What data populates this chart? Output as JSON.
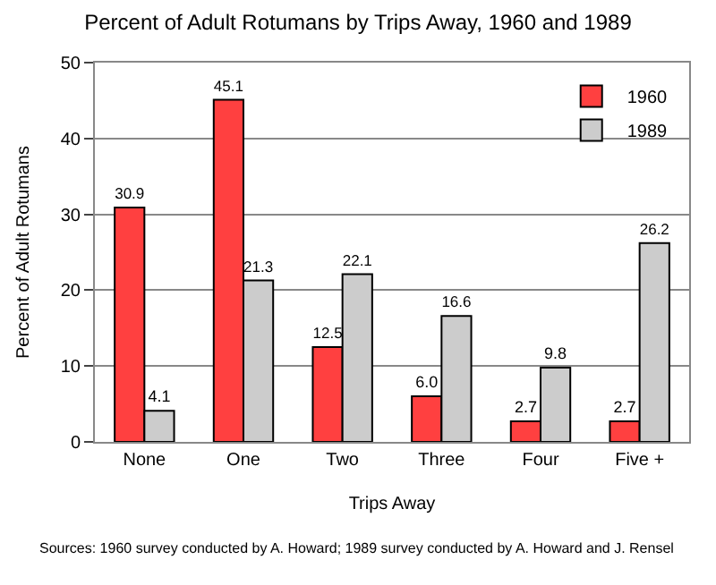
{
  "chart_data": {
    "type": "bar",
    "title": "Percent of Adult Rotumans by Trips Away, 1960 and 1989",
    "xlabel": "Trips Away",
    "ylabel": "Percent of Adult Rotumans",
    "categories": [
      "None",
      "One",
      "Two",
      "Three",
      "Four",
      "Five +"
    ],
    "series": [
      {
        "name": "1960",
        "color": "#ff4040",
        "values": [
          30.9,
          45.1,
          12.5,
          6.0,
          2.7,
          2.7
        ],
        "value_labels": [
          "30.9",
          "45.1",
          "12.5",
          "6.0",
          "2.7",
          "2.7"
        ]
      },
      {
        "name": "1989",
        "color": "#cccccc",
        "values": [
          4.1,
          21.3,
          22.1,
          16.6,
          9.8,
          26.2
        ],
        "value_labels": [
          "4.1",
          "21.3",
          "22.1",
          "16.6",
          "9.8",
          "26.2"
        ]
      }
    ],
    "ylim": [
      0,
      50
    ],
    "yticks": [
      0,
      10,
      20,
      30,
      40,
      50
    ],
    "grid": "y",
    "legend": "top right",
    "annotations": [
      "Sources: 1960 survey conducted by A. Howard; 1989 survey conducted by A. Howard and J. Rensel"
    ]
  }
}
